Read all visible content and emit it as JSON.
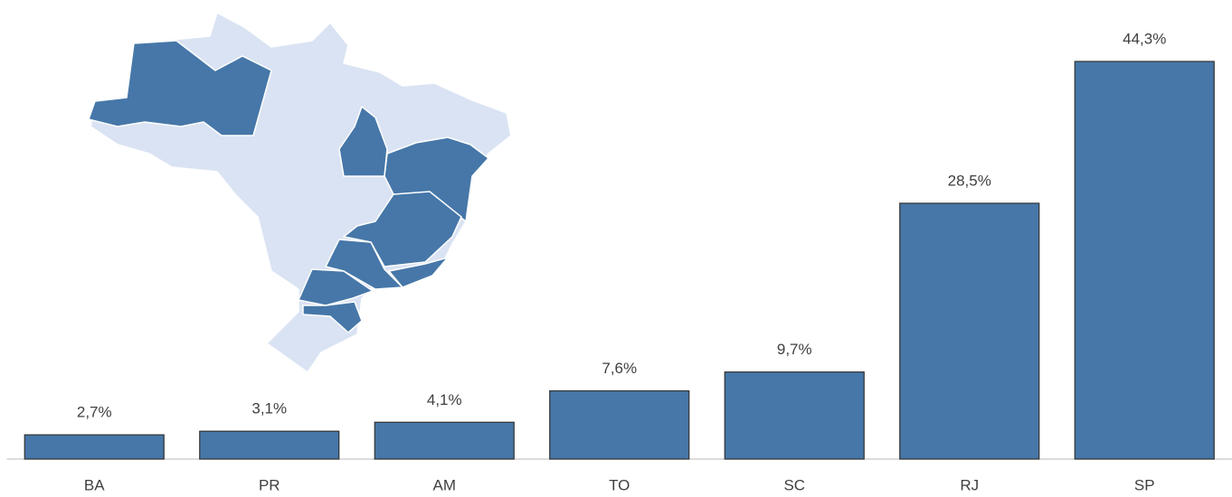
{
  "chart_data": {
    "type": "bar",
    "categories": [
      "BA",
      "PR",
      "AM",
      "TO",
      "SC",
      "RJ",
      "SP"
    ],
    "values": [
      2.7,
      3.1,
      4.1,
      7.6,
      9.7,
      28.5,
      44.3
    ],
    "value_labels": [
      "2,7%",
      "3,1%",
      "4,1%",
      "7,6%",
      "9,7%",
      "28,5%",
      "44,3%"
    ],
    "color": "#4677a8"
  }
}
